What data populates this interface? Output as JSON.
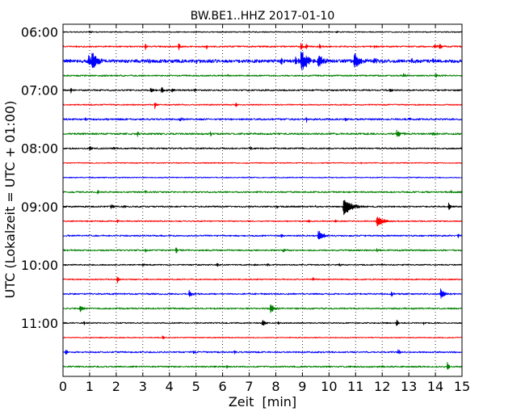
{
  "chart_data": {
    "type": "line",
    "title": "BW.BE1..HHZ 2017-01-10",
    "xlabel": "Zeit  [min]",
    "ylabel": "UTC (Lokalzeit = UTC + 01:00)",
    "xlim": [
      0,
      15
    ],
    "ylim": [
      "05:52",
      "11:55"
    ],
    "xticks": [
      "0",
      "1",
      "2",
      "3",
      "4",
      "5",
      "6",
      "7",
      "8",
      "9",
      "10",
      "11",
      "12",
      "13",
      "14",
      "15"
    ],
    "yticks": [
      "06:00",
      "07:00",
      "08:00",
      "09:00",
      "10:00",
      "11:00"
    ],
    "grid": true,
    "series": [
      {
        "y": "06:00",
        "color": "#000000",
        "noise": 0.04,
        "events": [
          {
            "t": 1.0,
            "amp": 0.1,
            "dur": 0.2
          },
          {
            "t": 10.3,
            "amp": 0.08,
            "dur": 0.2
          }
        ]
      },
      {
        "y": "06:15",
        "color": "#ff0000",
        "noise": 0.06,
        "events": [
          {
            "t": 3.1,
            "amp": 0.25,
            "dur": 0.1
          },
          {
            "t": 4.35,
            "amp": 0.35,
            "dur": 0.1
          },
          {
            "t": 5.4,
            "amp": 0.28,
            "dur": 0.08
          },
          {
            "t": 8.95,
            "amp": 0.4,
            "dur": 0.15
          },
          {
            "t": 9.15,
            "amp": 0.3,
            "dur": 0.1
          },
          {
            "t": 9.65,
            "amp": 0.3,
            "dur": 0.1
          },
          {
            "t": 11.7,
            "amp": 0.12,
            "dur": 0.3
          },
          {
            "t": 13.95,
            "amp": 0.15,
            "dur": 0.4
          },
          {
            "t": 14.15,
            "amp": 0.18,
            "dur": 0.3
          }
        ]
      },
      {
        "y": "06:30",
        "color": "#0000ff",
        "noise": 0.13,
        "events": [
          {
            "t": 0.95,
            "amp": 0.45,
            "dur": 0.6
          },
          {
            "t": 1.1,
            "amp": 0.55,
            "dur": 0.4
          },
          {
            "t": 3.2,
            "amp": 0.15,
            "dur": 0.2
          },
          {
            "t": 5.0,
            "amp": 0.15,
            "dur": 0.3
          },
          {
            "t": 8.2,
            "amp": 0.2,
            "dur": 0.2
          },
          {
            "t": 8.75,
            "amp": 0.3,
            "dur": 0.2
          },
          {
            "t": 8.95,
            "amp": 1.0,
            "dur": 0.5
          },
          {
            "t": 9.6,
            "amp": 0.55,
            "dur": 0.4
          },
          {
            "t": 10.95,
            "amp": 0.7,
            "dur": 0.5
          },
          {
            "t": 11.7,
            "amp": 0.2,
            "dur": 0.3
          },
          {
            "t": 13.1,
            "amp": 0.15,
            "dur": 0.3
          },
          {
            "t": 13.9,
            "amp": 0.15,
            "dur": 0.3
          }
        ]
      },
      {
        "y": "06:45",
        "color": "#008000",
        "noise": 0.06,
        "events": [
          {
            "t": 6.2,
            "amp": 0.1,
            "dur": 0.2
          },
          {
            "t": 12.8,
            "amp": 0.15,
            "dur": 0.2
          },
          {
            "t": 14.0,
            "amp": 0.15,
            "dur": 0.3
          }
        ]
      },
      {
        "y": "07:00",
        "color": "#000000",
        "noise": 0.06,
        "events": [
          {
            "t": 0.3,
            "amp": 0.25,
            "dur": 0.08
          },
          {
            "t": 3.3,
            "amp": 0.2,
            "dur": 0.3
          },
          {
            "t": 3.7,
            "amp": 0.3,
            "dur": 0.2
          },
          {
            "t": 4.1,
            "amp": 0.2,
            "dur": 0.15
          },
          {
            "t": 4.95,
            "amp": 0.2,
            "dur": 0.1
          },
          {
            "t": 12.3,
            "amp": 0.22,
            "dur": 0.1
          }
        ]
      },
      {
        "y": "07:15",
        "color": "#ff0000",
        "noise": 0.05,
        "events": [
          {
            "t": 3.45,
            "amp": 0.35,
            "dur": 0.1
          },
          {
            "t": 6.5,
            "amp": 0.28,
            "dur": 0.08
          }
        ]
      },
      {
        "y": "07:30",
        "color": "#0000ff",
        "noise": 0.07,
        "events": [
          {
            "t": 0.85,
            "amp": 0.2,
            "dur": 0.1
          },
          {
            "t": 4.4,
            "amp": 0.18,
            "dur": 0.3
          },
          {
            "t": 9.15,
            "amp": 0.22,
            "dur": 0.1
          },
          {
            "t": 10.6,
            "amp": 0.12,
            "dur": 0.2
          },
          {
            "t": 13.0,
            "amp": 0.12,
            "dur": 0.2
          }
        ]
      },
      {
        "y": "07:45",
        "color": "#008000",
        "noise": 0.07,
        "events": [
          {
            "t": 2.8,
            "amp": 0.22,
            "dur": 0.1
          },
          {
            "t": 5.55,
            "amp": 0.2,
            "dur": 0.1
          },
          {
            "t": 12.55,
            "amp": 0.35,
            "dur": 0.3
          },
          {
            "t": 13.9,
            "amp": 0.15,
            "dur": 0.3
          }
        ]
      },
      {
        "y": "08:00",
        "color": "#000000",
        "noise": 0.06,
        "events": [
          {
            "t": 1.0,
            "amp": 0.15,
            "dur": 0.3
          },
          {
            "t": 1.9,
            "amp": 0.12,
            "dur": 0.1
          },
          {
            "t": 7.05,
            "amp": 0.15,
            "dur": 0.1
          },
          {
            "t": 7.4,
            "amp": 0.1,
            "dur": 0.1
          }
        ]
      },
      {
        "y": "08:15",
        "color": "#ff0000",
        "noise": 0.04,
        "events": [
          {
            "t": 11.2,
            "amp": 0.08,
            "dur": 0.1
          }
        ]
      },
      {
        "y": "08:30",
        "color": "#0000ff",
        "noise": 0.04,
        "events": []
      },
      {
        "y": "08:45",
        "color": "#008000",
        "noise": 0.06,
        "events": [
          {
            "t": 1.3,
            "amp": 0.15,
            "dur": 0.1
          },
          {
            "t": 3.1,
            "amp": 0.12,
            "dur": 0.1
          },
          {
            "t": 14.6,
            "amp": 0.15,
            "dur": 0.1
          }
        ]
      },
      {
        "y": "09:00",
        "color": "#000000",
        "noise": 0.06,
        "events": [
          {
            "t": 1.8,
            "amp": 0.18,
            "dur": 0.3
          },
          {
            "t": 2.3,
            "amp": 0.12,
            "dur": 0.1
          },
          {
            "t": 8.05,
            "amp": 0.15,
            "dur": 0.1
          },
          {
            "t": 9.5,
            "amp": 0.12,
            "dur": 0.1
          },
          {
            "t": 10.55,
            "amp": 0.8,
            "dur": 0.6
          },
          {
            "t": 14.5,
            "amp": 0.35,
            "dur": 0.15
          }
        ]
      },
      {
        "y": "09:15",
        "color": "#ff0000",
        "noise": 0.05,
        "events": [
          {
            "t": 2.05,
            "amp": 0.15,
            "dur": 0.1
          },
          {
            "t": 9.25,
            "amp": 0.15,
            "dur": 0.1
          },
          {
            "t": 10.25,
            "amp": 0.15,
            "dur": 0.1
          },
          {
            "t": 11.8,
            "amp": 0.5,
            "dur": 0.5
          }
        ]
      },
      {
        "y": "09:30",
        "color": "#0000ff",
        "noise": 0.06,
        "events": [
          {
            "t": 8.2,
            "amp": 0.15,
            "dur": 0.1
          },
          {
            "t": 9.6,
            "amp": 0.45,
            "dur": 0.4
          },
          {
            "t": 14.85,
            "amp": 0.2,
            "dur": 0.1
          }
        ]
      },
      {
        "y": "09:45",
        "color": "#008000",
        "noise": 0.06,
        "events": [
          {
            "t": 3.1,
            "amp": 0.15,
            "dur": 0.1
          },
          {
            "t": 4.25,
            "amp": 0.35,
            "dur": 0.1
          },
          {
            "t": 8.3,
            "amp": 0.2,
            "dur": 0.15
          },
          {
            "t": 11.8,
            "amp": 0.15,
            "dur": 0.1
          }
        ]
      },
      {
        "y": "10:00",
        "color": "#000000",
        "noise": 0.05,
        "events": [
          {
            "t": 3.0,
            "amp": 0.15,
            "dur": 0.1
          },
          {
            "t": 5.8,
            "amp": 0.18,
            "dur": 0.1
          },
          {
            "t": 7.2,
            "amp": 0.15,
            "dur": 0.1
          },
          {
            "t": 7.7,
            "amp": 0.15,
            "dur": 0.1
          },
          {
            "t": 10.4,
            "amp": 0.12,
            "dur": 0.1
          },
          {
            "t": 12.0,
            "amp": 0.15,
            "dur": 0.1
          }
        ]
      },
      {
        "y": "10:15",
        "color": "#ff0000",
        "noise": 0.05,
        "events": [
          {
            "t": 2.05,
            "amp": 0.35,
            "dur": 0.1
          },
          {
            "t": 9.4,
            "amp": 0.18,
            "dur": 0.1
          }
        ]
      },
      {
        "y": "10:30",
        "color": "#0000ff",
        "noise": 0.06,
        "events": [
          {
            "t": 4.75,
            "amp": 0.35,
            "dur": 0.25
          },
          {
            "t": 12.35,
            "amp": 0.3,
            "dur": 0.1
          },
          {
            "t": 14.2,
            "amp": 0.45,
            "dur": 0.3
          }
        ]
      },
      {
        "y": "10:45",
        "color": "#008000",
        "noise": 0.06,
        "events": [
          {
            "t": 0.65,
            "amp": 0.3,
            "dur": 0.2
          },
          {
            "t": 7.8,
            "amp": 0.4,
            "dur": 0.3
          }
        ]
      },
      {
        "y": "11:00",
        "color": "#000000",
        "noise": 0.05,
        "events": [
          {
            "t": 0.8,
            "amp": 0.2,
            "dur": 0.1
          },
          {
            "t": 7.5,
            "amp": 0.3,
            "dur": 0.2
          },
          {
            "t": 8.1,
            "amp": 0.2,
            "dur": 0.1
          },
          {
            "t": 12.55,
            "amp": 0.35,
            "dur": 0.1
          },
          {
            "t": 13.55,
            "amp": 0.15,
            "dur": 0.1
          }
        ]
      },
      {
        "y": "11:15",
        "color": "#ff0000",
        "noise": 0.04,
        "events": [
          {
            "t": 3.75,
            "amp": 0.18,
            "dur": 0.1
          }
        ]
      },
      {
        "y": "11:30",
        "color": "#0000ff",
        "noise": 0.06,
        "events": [
          {
            "t": 0.1,
            "amp": 0.3,
            "dur": 0.1
          },
          {
            "t": 4.9,
            "amp": 0.18,
            "dur": 0.1
          },
          {
            "t": 6.45,
            "amp": 0.15,
            "dur": 0.1
          },
          {
            "t": 12.6,
            "amp": 0.25,
            "dur": 0.15
          }
        ]
      },
      {
        "y": "11:45",
        "color": "#008000",
        "noise": 0.06,
        "events": [
          {
            "t": 6.15,
            "amp": 0.2,
            "dur": 0.1
          },
          {
            "t": 12.0,
            "amp": 0.15,
            "dur": 0.1
          },
          {
            "t": 14.45,
            "amp": 0.4,
            "dur": 0.15
          }
        ]
      }
    ]
  }
}
